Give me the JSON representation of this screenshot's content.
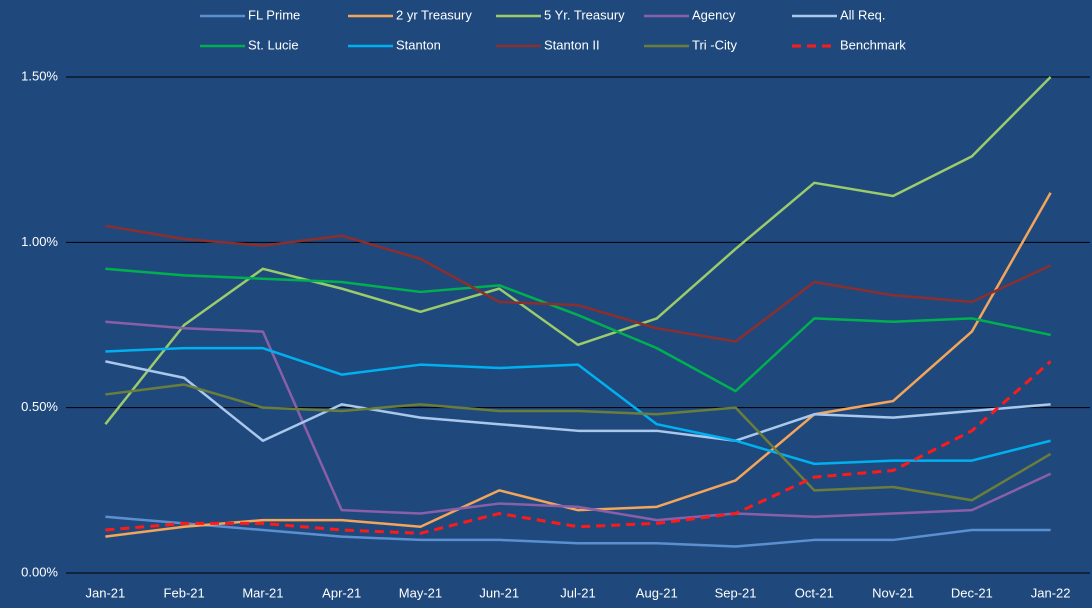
{
  "chart_data": {
    "type": "line",
    "categories": [
      "Jan-21",
      "Feb-21",
      "Mar-21",
      "Apr-21",
      "May-21",
      "Jun-21",
      "Jul-21",
      "Aug-21",
      "Sep-21",
      "Oct-21",
      "Nov-21",
      "Dec-21",
      "Jan-22"
    ],
    "series": [
      {
        "name": "FL Prime",
        "color": "#5b8fd0",
        "values": [
          0.17,
          0.15,
          0.13,
          0.11,
          0.1,
          0.1,
          0.09,
          0.09,
          0.08,
          0.1,
          0.1,
          0.13,
          0.13
        ]
      },
      {
        "name": "2 yr Treasury",
        "color": "#f4a55a",
        "values": [
          0.11,
          0.14,
          0.16,
          0.16,
          0.14,
          0.25,
          0.19,
          0.2,
          0.28,
          0.48,
          0.52,
          0.73,
          1.15
        ]
      },
      {
        "name": "5 Yr. Treasury",
        "color": "#9bcb6a",
        "values": [
          0.45,
          0.75,
          0.92,
          0.86,
          0.79,
          0.86,
          0.69,
          0.77,
          0.98,
          1.18,
          1.14,
          1.26,
          1.5
        ]
      },
      {
        "name": "Agency",
        "color": "#8a5fa8",
        "values": [
          0.76,
          0.74,
          0.73,
          0.19,
          0.18,
          0.21,
          0.2,
          0.16,
          0.18,
          0.17,
          0.18,
          0.19,
          0.3
        ]
      },
      {
        "name": "All Req.",
        "color": "#a9c8ec",
        "values": [
          0.64,
          0.59,
          0.4,
          0.51,
          0.47,
          0.45,
          0.43,
          0.43,
          0.4,
          0.48,
          0.47,
          0.49,
          0.51
        ]
      },
      {
        "name": "St. Lucie",
        "color": "#00b050",
        "values": [
          0.92,
          0.9,
          0.89,
          0.88,
          0.85,
          0.87,
          0.78,
          0.68,
          0.55,
          0.77,
          0.76,
          0.77,
          0.72
        ]
      },
      {
        "name": "Stanton",
        "color": "#00b0f0",
        "values": [
          0.67,
          0.68,
          0.68,
          0.6,
          0.63,
          0.62,
          0.63,
          0.45,
          0.4,
          0.33,
          0.34,
          0.34,
          0.4
        ]
      },
      {
        "name": "Stanton II",
        "color": "#8b2e2e",
        "values": [
          1.05,
          1.01,
          0.99,
          1.02,
          0.95,
          0.82,
          0.81,
          0.74,
          0.7,
          0.88,
          0.84,
          0.82,
          0.93
        ]
      },
      {
        "name": "Tri -City",
        "color": "#6b7d3a",
        "values": [
          0.54,
          0.57,
          0.5,
          0.49,
          0.51,
          0.49,
          0.49,
          0.48,
          0.5,
          0.25,
          0.26,
          0.22,
          0.36
        ]
      },
      {
        "name": "Benchmark",
        "color": "#ff1a1a",
        "dashed": true,
        "values": [
          0.13,
          0.15,
          0.15,
          0.13,
          0.12,
          0.18,
          0.14,
          0.15,
          0.18,
          0.29,
          0.31,
          0.43,
          0.64
        ]
      }
    ],
    "ylim": [
      0,
      1.5
    ],
    "yticks": [
      {
        "value": 0,
        "label": "0.00%"
      },
      {
        "value": 0.5,
        "label": "0.50%"
      },
      {
        "value": 1.0,
        "label": "1.00%"
      },
      {
        "value": 1.5,
        "label": "1.50%"
      }
    ],
    "grid": true,
    "legend": "top"
  }
}
